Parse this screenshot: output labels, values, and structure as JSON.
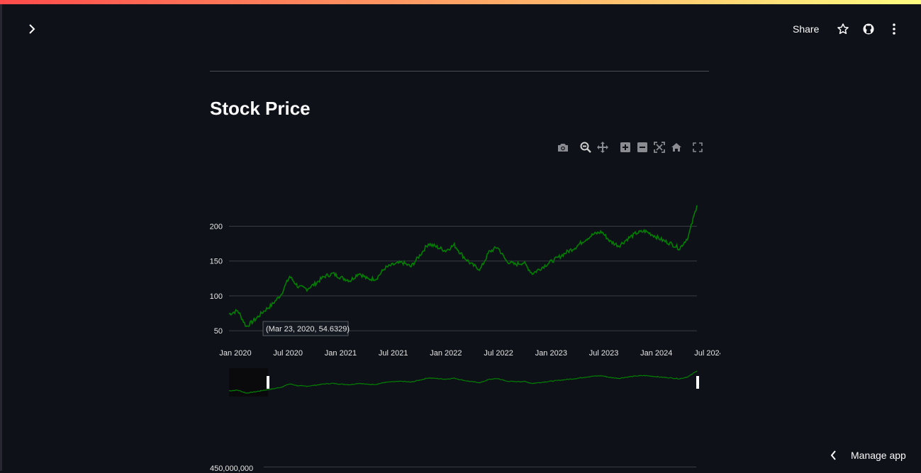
{
  "header": {
    "share_label": "Share",
    "icons": [
      "chevron-right-icon",
      "star-icon",
      "github-icon",
      "kebab-menu-icon"
    ]
  },
  "page": {
    "title": "Stock Price"
  },
  "modebar": {
    "icons": [
      "camera-icon",
      "zoom-icon",
      "pan-icon",
      "zoom-in-icon",
      "zoom-out-icon",
      "autoscale-icon",
      "reset-axes-icon",
      "fullscreen-icon"
    ]
  },
  "chart_data": {
    "type": "line",
    "title": "Stock Price",
    "xlabel": "",
    "ylabel": "",
    "line_color": "#008000",
    "x_ticks": [
      "Jan 2020",
      "Jul 2020",
      "Jan 2021",
      "Jul 2021",
      "Jan 2022",
      "Jul 2022",
      "Jan 2023",
      "Jul 2023",
      "Jan 2024",
      "Jul 2024"
    ],
    "y_ticks": [
      50,
      100,
      150,
      200
    ],
    "ylim": [
      42,
      235
    ],
    "xlim": [
      "Jan 2020",
      "Jul 2024"
    ],
    "grid": true,
    "rangeslider": true,
    "hover": {
      "label": "(Mar 23, 2020, 54.6329)",
      "x": "Mar 23, 2020",
      "y": 54.6329
    },
    "series": [
      {
        "x": [
          "Jan 2020",
          "Feb 2020",
          "Mar 2020",
          "Apr 2020",
          "May 2020",
          "Jun 2020",
          "Jul 2020",
          "Aug 2020",
          "Sep 2020",
          "Oct 2020",
          "Nov 2020",
          "Dec 2020",
          "Jan 2021",
          "Feb 2021",
          "Mar 2021",
          "Apr 2021",
          "May 2021",
          "Jun 2021",
          "Jul 2021",
          "Aug 2021",
          "Sep 2021",
          "Oct 2021",
          "Nov 2021",
          "Dec 2021",
          "Jan 2022",
          "Feb 2022",
          "Mar 2022",
          "Apr 2022",
          "May 2022",
          "Jun 2022",
          "Jul 2022",
          "Aug 2022",
          "Sep 2022",
          "Oct 2022",
          "Nov 2022",
          "Dec 2022",
          "Jan 2023",
          "Feb 2023",
          "Mar 2023",
          "Apr 2023",
          "May 2023",
          "Jun 2023",
          "Jul 2023",
          "Aug 2023",
          "Sep 2023",
          "Oct 2023",
          "Nov 2023",
          "Dec 2023",
          "Jan 2024",
          "Feb 2024",
          "Mar 2024",
          "Apr 2024",
          "May 2024",
          "Jun 2024",
          "Jul 2024"
        ],
        "values": [
          74,
          79,
          56,
          66,
          78,
          88,
          102,
          128,
          113,
          110,
          118,
          128,
          132,
          126,
          122,
          133,
          124,
          125,
          140,
          145,
          148,
          142,
          158,
          175,
          170,
          165,
          173,
          157,
          145,
          138,
          163,
          170,
          150,
          145,
          148,
          132,
          140,
          148,
          155,
          163,
          170,
          180,
          188,
          192,
          178,
          172,
          182,
          190,
          193,
          187,
          180,
          175,
          168,
          185,
          230
        ]
      }
    ]
  },
  "next_chart": {
    "first_tick": "450,000,000"
  },
  "footer": {
    "manage_label": "Manage app"
  }
}
